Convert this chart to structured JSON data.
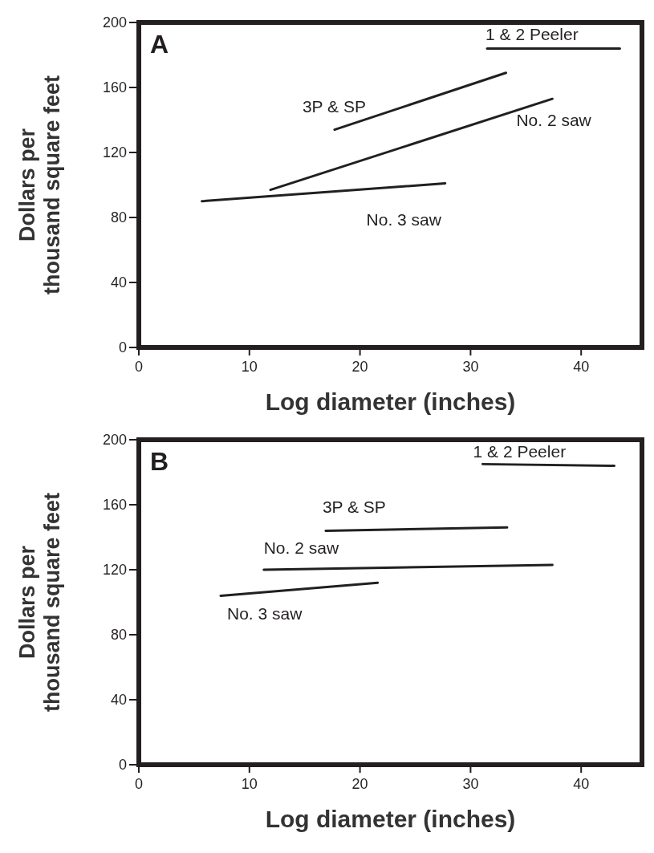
{
  "chart_data": [
    {
      "type": "line",
      "title": "A",
      "xlabel": "Log diameter (inches)",
      "ylabel": "Dollars per thousand square feet",
      "xlim": [
        0,
        45.5
      ],
      "xticks": [
        0,
        10,
        20,
        30,
        40
      ],
      "ylim": [
        0,
        200
      ],
      "yticks": [
        0,
        40,
        80,
        120,
        160,
        200
      ],
      "line_style": "solid",
      "series": [
        {
          "name": "1 & 2 Peeler",
          "color": "#231f20",
          "x": [
            31.5,
            43.5
          ],
          "values": [
            184,
            184
          ]
        },
        {
          "name": "3P & SP",
          "color": "#231f20",
          "x": [
            17.7,
            33.2
          ],
          "values": [
            134,
            169
          ]
        },
        {
          "name": "No. 2 saw",
          "color": "#231f20",
          "x": [
            11.9,
            37.4
          ],
          "values": [
            97,
            153
          ]
        },
        {
          "name": "No. 3 saw",
          "color": "#231f20",
          "x": [
            5.7,
            27.7
          ],
          "values": [
            90,
            101
          ]
        }
      ]
    },
    {
      "type": "line",
      "title": "B",
      "xlabel": "Log diameter (inches)",
      "ylabel": "Dollars per thousand square feet",
      "xlim": [
        0,
        45.5
      ],
      "xticks": [
        0,
        10,
        20,
        30,
        40
      ],
      "ylim": [
        0,
        200
      ],
      "yticks": [
        0,
        40,
        80,
        120,
        160,
        200
      ],
      "line_style": "solid",
      "series": [
        {
          "name": "1 & 2 Peeler",
          "color": "#231f20",
          "x": [
            31.1,
            43.0
          ],
          "values": [
            185,
            184
          ]
        },
        {
          "name": "3P & SP",
          "color": "#231f20",
          "x": [
            16.9,
            33.3
          ],
          "values": [
            144,
            146
          ]
        },
        {
          "name": "No. 2 saw",
          "color": "#231f20",
          "x": [
            11.3,
            37.4
          ],
          "values": [
            120,
            123
          ]
        },
        {
          "name": "No. 3 saw",
          "color": "#231f20",
          "x": [
            7.4,
            21.6
          ],
          "values": [
            104,
            112
          ]
        }
      ]
    }
  ]
}
